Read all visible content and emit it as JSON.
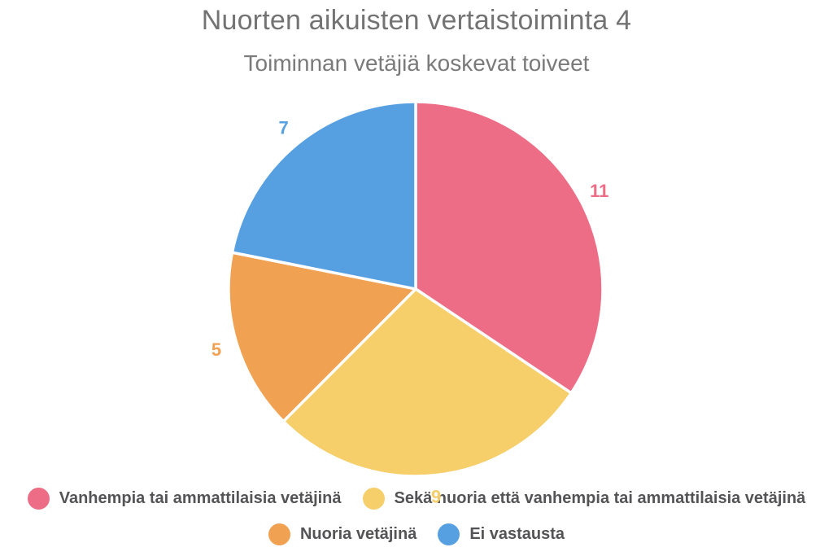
{
  "chart_data": {
    "type": "pie",
    "title": "Nuorten aikuisten vertaistoiminta 4",
    "subtitle": "Toiminnan vetäjiä koskevat toiveet",
    "categories": [
      "Vanhempia tai ammattilaisia vetäjinä",
      "Sekä nuoria että vanhempia tai ammattilaisia vetäjinä",
      "Nuoria vetäjinä",
      "Ei vastausta"
    ],
    "values": [
      11,
      9,
      5,
      7
    ],
    "total": 32,
    "colors": [
      "#ED6C86",
      "#F6CE6A",
      "#F1A152",
      "#56A0E2"
    ],
    "value_labels": [
      "11",
      "9",
      "5",
      "7"
    ],
    "start_angle_deg": 0,
    "direction": "clockwise",
    "slice_border_color": "#FFFFFF",
    "legend_position": "bottom",
    "legend_rows": [
      [
        0,
        1
      ],
      [
        2,
        3
      ]
    ],
    "background_color": "#FFFFFF",
    "title_color": "#737373",
    "subtitle_color": "#7A7A7A",
    "legend_text_color": "#545456"
  }
}
